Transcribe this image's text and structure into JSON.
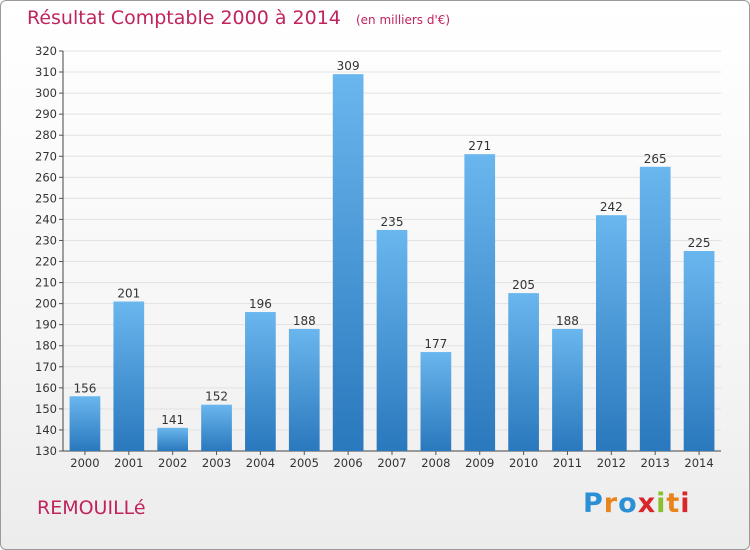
{
  "header": {
    "title": "Résultat Comptable 2000 à 2014",
    "unit": "(en milliers d'€)"
  },
  "footer": {
    "commune": "REMOUILLé"
  },
  "logo": {
    "letters": [
      "P",
      "r",
      "o",
      "x",
      "i",
      "t",
      "i"
    ],
    "colors": [
      "#2a8fd4",
      "#e8841c",
      "#2a8fd4",
      "#d8262a",
      "#8bbf2c",
      "#e8841c",
      "#d8262a"
    ]
  },
  "colors": {
    "bar": "#3a95db",
    "bar_light": "#6ab6ee",
    "bar_dark": "#2a78bd",
    "title": "#c0245e"
  },
  "chart_data": {
    "type": "bar",
    "title": "Résultat Comptable 2000 à 2014",
    "subtitle": "(en milliers d'€)",
    "categories": [
      "2000",
      "2001",
      "2002",
      "2003",
      "2004",
      "2005",
      "2006",
      "2007",
      "2008",
      "2009",
      "2010",
      "2011",
      "2012",
      "2013",
      "2014"
    ],
    "values": [
      156,
      201,
      141,
      152,
      196,
      188,
      309,
      235,
      177,
      271,
      205,
      188,
      242,
      265,
      225
    ],
    "ylim": [
      130,
      320
    ],
    "ytick_step": 10,
    "grid": true,
    "legend": "none"
  }
}
